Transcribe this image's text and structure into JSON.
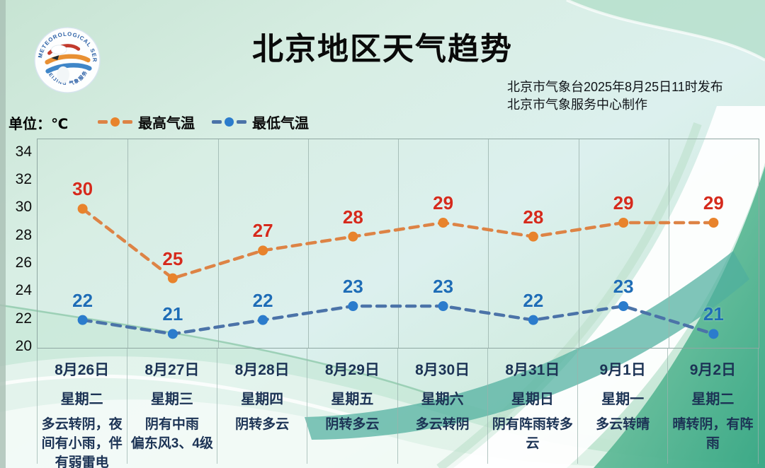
{
  "header": {
    "title": "北京地区天气趋势",
    "issued_by": "北京市气象台2025年8月25日11时发布",
    "produced_by": "北京市气象服务中心制作",
    "logo_top_text": "METEOROLOGICAL SERVICE",
    "logo_bottom_text": "BEIJING 气象服务"
  },
  "legend": {
    "unit_label": "单位：℃",
    "items": [
      {
        "label": "最高气温"
      },
      {
        "label": "最低气温"
      }
    ]
  },
  "chart_data": {
    "type": "line",
    "title": "北京地区天气趋势",
    "x": [
      "8月26日",
      "8月27日",
      "8月28日",
      "8月29日",
      "8月30日",
      "8月31日",
      "9月1日",
      "9月2日"
    ],
    "weekdays": [
      "星期二",
      "星期三",
      "星期四",
      "星期五",
      "星期六",
      "星期日",
      "星期一",
      "星期二"
    ],
    "weather": [
      "多云转阴，夜间有小雨，伴有弱雷电",
      "阴有中雨\n偏东风3、4级",
      "阴转多云",
      "阴转多云",
      "多云转阴",
      "阴有阵雨转多云",
      "多云转晴",
      "晴转阴，有阵雨"
    ],
    "series": [
      {
        "name": "最高气温",
        "values": [
          30,
          25,
          27,
          28,
          29,
          28,
          29,
          29
        ],
        "line_color": "#dd8345",
        "dot_color": "#e8832c",
        "label_color": "#d52a1c"
      },
      {
        "name": "最低气温",
        "values": [
          22,
          21,
          22,
          23,
          23,
          22,
          23,
          21
        ],
        "line_color": "#4b73a8",
        "dot_color": "#2b7ccc",
        "label_color": "#1e6db6"
      }
    ],
    "ylim": [
      20,
      35
    ],
    "yticks": [
      20,
      22,
      24,
      26,
      28,
      30,
      32,
      34
    ],
    "grid": "vertical-only",
    "legend_position": "top-left",
    "axis_text_color": "#0d0d0d",
    "xlabel_text_color": "#1c3355",
    "grid_color": "#9ab3ad"
  }
}
